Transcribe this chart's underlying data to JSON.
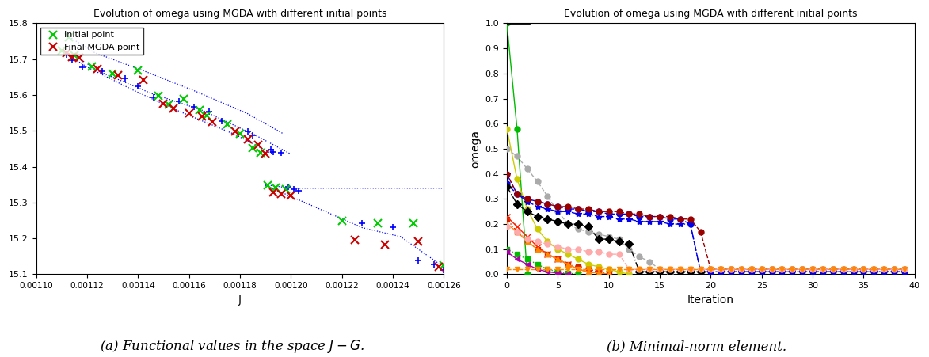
{
  "title_left": "Evolution of omega using MGDA with different initial points",
  "title_right": "Evolution of omega using MGDA with different initial points",
  "caption_left": "(a) Functional values in the space $J - G$.",
  "caption_right": "(b) Minimal-norm element.",
  "left": {
    "xlabel": "J",
    "xlim": [
      0.0011,
      0.00126
    ],
    "ylim": [
      15.1,
      15.8
    ],
    "yticks": [
      15.1,
      15.2,
      15.3,
      15.4,
      15.5,
      15.6,
      15.7,
      15.8
    ],
    "xtick_labels": [
      "0.0011",
      "0.00112",
      "0.00114",
      "0.00116",
      "0.00118",
      "0.0012",
      "0.00122",
      "0.00124",
      "0.00126"
    ]
  },
  "right": {
    "xlabel": "Iteration",
    "ylabel": "omega",
    "xlim": [
      0,
      40
    ],
    "ylim": [
      0,
      1.0
    ],
    "yticks": [
      0.0,
      0.1,
      0.2,
      0.3,
      0.4,
      0.5,
      0.6,
      0.7,
      0.8,
      0.9,
      1.0
    ],
    "xticks": [
      0,
      5,
      10,
      15,
      20,
      25,
      30,
      35,
      40
    ]
  },
  "series": [
    {
      "color": "#00bb00",
      "marker": "o",
      "linestyle": "-",
      "markersize": 5,
      "lw": 1.0,
      "iters": [
        0,
        1,
        2
      ],
      "vals": [
        1.0,
        0.58,
        0.0
      ]
    },
    {
      "color": "#cccc00",
      "marker": "o",
      "linestyle": "-",
      "markersize": 5,
      "lw": 1.0,
      "iters": [
        0,
        1,
        2,
        3,
        4,
        5,
        6,
        7,
        8,
        9,
        10,
        11,
        12
      ],
      "vals": [
        0.58,
        0.38,
        0.26,
        0.18,
        0.13,
        0.1,
        0.08,
        0.06,
        0.04,
        0.03,
        0.02,
        0.01,
        0.0
      ]
    },
    {
      "color": "#aaaaaa",
      "marker": "o",
      "linestyle": "--",
      "markersize": 5,
      "lw": 1.0,
      "iters": [
        0,
        1,
        2,
        3,
        4,
        5,
        6,
        7,
        8,
        9,
        10,
        11,
        12,
        13,
        14,
        15,
        16
      ],
      "vals": [
        0.5,
        0.47,
        0.42,
        0.37,
        0.31,
        0.25,
        0.2,
        0.18,
        0.17,
        0.16,
        0.15,
        0.14,
        0.1,
        0.07,
        0.05,
        0.02,
        0.0
      ]
    },
    {
      "color": "#0000ee",
      "marker": "o",
      "linestyle": "--",
      "markersize": 5,
      "lw": 1.0,
      "iters": [
        0,
        1,
        2,
        3,
        4,
        5,
        6,
        7,
        8,
        9,
        10,
        11,
        12,
        13,
        14,
        15,
        16,
        17,
        18,
        19,
        20,
        21,
        22,
        23,
        24,
        25,
        26,
        27,
        28,
        29,
        30,
        31,
        32,
        33,
        34,
        35,
        36,
        37,
        38,
        39
      ],
      "vals": [
        0.36,
        0.32,
        0.3,
        0.29,
        0.28,
        0.27,
        0.26,
        0.26,
        0.25,
        0.25,
        0.24,
        0.24,
        0.24,
        0.23,
        0.23,
        0.23,
        0.22,
        0.22,
        0.2,
        0.01,
        0.01,
        0.01,
        0.01,
        0.01,
        0.01,
        0.01,
        0.01,
        0.01,
        0.01,
        0.01,
        0.01,
        0.01,
        0.01,
        0.01,
        0.01,
        0.01,
        0.01,
        0.01,
        0.01,
        0.01
      ]
    },
    {
      "color": "#0000ee",
      "marker": "*",
      "linestyle": "-.",
      "markersize": 6,
      "lw": 1.0,
      "iters": [
        0,
        1,
        2,
        3,
        4,
        5,
        6,
        7,
        8,
        9,
        10,
        11,
        12,
        13,
        14,
        15,
        16,
        17,
        18,
        19,
        20,
        21,
        22,
        23,
        24,
        25,
        26,
        27,
        28,
        29,
        30,
        31,
        32,
        33,
        34,
        35,
        36,
        37,
        38,
        39
      ],
      "vals": [
        0.4,
        0.32,
        0.29,
        0.27,
        0.26,
        0.25,
        0.25,
        0.24,
        0.24,
        0.23,
        0.23,
        0.22,
        0.22,
        0.21,
        0.21,
        0.21,
        0.2,
        0.2,
        0.2,
        0.01,
        0.01,
        0.01,
        0.01,
        0.01,
        0.01,
        0.01,
        0.01,
        0.01,
        0.01,
        0.01,
        0.01,
        0.01,
        0.01,
        0.01,
        0.01,
        0.01,
        0.01,
        0.01,
        0.01,
        0.01
      ]
    },
    {
      "color": "#990000",
      "marker": "o",
      "linestyle": "--",
      "markersize": 5,
      "lw": 1.0,
      "iters": [
        0,
        1,
        2,
        3,
        4,
        5,
        6,
        7,
        8,
        9,
        10,
        11,
        12,
        13,
        14,
        15,
        16,
        17,
        18,
        19,
        20,
        21,
        22,
        23,
        24,
        25,
        26,
        27,
        28,
        29,
        30,
        31,
        32,
        33,
        34,
        35,
        36,
        37,
        38,
        39
      ],
      "vals": [
        0.4,
        0.32,
        0.3,
        0.29,
        0.28,
        0.27,
        0.27,
        0.26,
        0.26,
        0.25,
        0.25,
        0.25,
        0.24,
        0.24,
        0.23,
        0.23,
        0.23,
        0.22,
        0.22,
        0.17,
        0.02,
        0.02,
        0.02,
        0.02,
        0.02,
        0.02,
        0.02,
        0.02,
        0.02,
        0.02,
        0.02,
        0.02,
        0.02,
        0.02,
        0.02,
        0.02,
        0.02,
        0.02,
        0.02,
        0.02
      ]
    },
    {
      "color": "#000000",
      "marker": "D",
      "linestyle": "-.",
      "markersize": 5,
      "lw": 1.0,
      "iters": [
        0,
        1,
        2,
        3,
        4,
        5,
        6,
        7,
        8,
        9,
        10,
        11,
        12,
        13,
        14,
        15,
        16,
        17,
        18,
        19
      ],
      "vals": [
        0.35,
        0.28,
        0.25,
        0.23,
        0.22,
        0.21,
        0.2,
        0.2,
        0.19,
        0.14,
        0.14,
        0.13,
        0.12,
        0.01,
        0.01,
        0.01,
        0.01,
        0.01,
        0.01,
        0.01
      ]
    },
    {
      "color": "#cc2200",
      "marker": "s",
      "linestyle": ":",
      "markersize": 4,
      "lw": 1.0,
      "iters": [
        0,
        1,
        2,
        3,
        4,
        5,
        6,
        7,
        8,
        9,
        10
      ],
      "vals": [
        0.22,
        0.17,
        0.13,
        0.1,
        0.08,
        0.06,
        0.04,
        0.03,
        0.02,
        0.01,
        0.0
      ]
    },
    {
      "color": "#ff2200",
      "marker": "x",
      "linestyle": "-",
      "markersize": 6,
      "lw": 1.0,
      "iters": [
        0,
        1,
        2,
        3,
        4,
        5,
        6,
        7,
        8,
        9,
        10
      ],
      "vals": [
        0.23,
        0.19,
        0.15,
        0.11,
        0.08,
        0.06,
        0.04,
        0.02,
        0.01,
        0.005,
        0.0
      ]
    },
    {
      "color": "#ff8800",
      "marker": "^",
      "linestyle": "-",
      "markersize": 5,
      "lw": 1.0,
      "iters": [
        0,
        1,
        2,
        3,
        4,
        5,
        6,
        7,
        8,
        9,
        10
      ],
      "vals": [
        0.2,
        0.17,
        0.13,
        0.1,
        0.08,
        0.06,
        0.04,
        0.02,
        0.01,
        0.005,
        0.0
      ]
    },
    {
      "color": "#ffaaaa",
      "marker": "o",
      "linestyle": "--",
      "markersize": 5,
      "lw": 1.0,
      "iters": [
        0,
        1,
        2,
        3,
        4,
        5,
        6,
        7,
        8,
        9,
        10,
        11,
        12,
        13,
        14,
        15,
        16,
        17,
        18,
        19,
        20,
        21,
        22,
        23,
        24,
        25,
        26,
        27,
        28,
        29,
        30,
        31,
        32,
        33,
        34,
        35,
        36,
        37,
        38,
        39
      ],
      "vals": [
        0.19,
        0.17,
        0.14,
        0.13,
        0.12,
        0.11,
        0.1,
        0.1,
        0.09,
        0.09,
        0.08,
        0.08,
        0.02,
        0.02,
        0.02,
        0.02,
        0.02,
        0.02,
        0.02,
        0.02,
        0.02,
        0.02,
        0.02,
        0.02,
        0.02,
        0.02,
        0.02,
        0.02,
        0.02,
        0.02,
        0.02,
        0.02,
        0.02,
        0.02,
        0.02,
        0.02,
        0.02,
        0.02,
        0.02,
        0.02
      ]
    },
    {
      "color": "#00bb00",
      "marker": "s",
      "linestyle": ":",
      "markersize": 4,
      "lw": 1.0,
      "iters": [
        0,
        1,
        2,
        3,
        4,
        5,
        6,
        7
      ],
      "vals": [
        0.1,
        0.08,
        0.06,
        0.04,
        0.02,
        0.01,
        0.005,
        0.0
      ]
    },
    {
      "color": "#aa00aa",
      "marker": "<",
      "linestyle": "-",
      "markersize": 5,
      "lw": 1.0,
      "iters": [
        0,
        1,
        2,
        3,
        4,
        5,
        6
      ],
      "vals": [
        0.09,
        0.06,
        0.04,
        0.02,
        0.01,
        0.005,
        0.0
      ]
    },
    {
      "color": "#ff8800",
      "marker": "v",
      "linestyle": "--",
      "markersize": 5,
      "lw": 1.0,
      "iters": [
        0,
        1,
        2,
        3,
        4,
        5,
        6,
        7,
        8,
        9,
        10,
        11,
        12,
        13,
        14,
        15,
        16,
        17,
        18,
        19,
        20,
        21,
        22,
        23,
        24,
        25,
        26,
        27,
        28,
        29,
        30,
        31,
        32,
        33,
        34,
        35,
        36,
        37,
        38,
        39
      ],
      "vals": [
        0.02,
        0.02,
        0.02,
        0.02,
        0.02,
        0.02,
        0.02,
        0.02,
        0.02,
        0.02,
        0.02,
        0.02,
        0.02,
        0.02,
        0.02,
        0.02,
        0.02,
        0.02,
        0.02,
        0.02,
        0.02,
        0.02,
        0.02,
        0.02,
        0.02,
        0.02,
        0.02,
        0.02,
        0.02,
        0.02,
        0.02,
        0.02,
        0.02,
        0.02,
        0.02,
        0.02,
        0.02,
        0.02,
        0.02,
        0.02
      ]
    }
  ],
  "left_trajectories": [
    {
      "x": [
        0.00111,
        0.00112,
        0.001138,
        0.001156,
        0.001178,
        0.001193
      ],
      "y": [
        15.724,
        15.678,
        15.614,
        15.555,
        15.49,
        15.435
      ]
    },
    {
      "x": [
        0.001113,
        0.001123,
        0.001142,
        0.001162,
        0.001183,
        0.001197
      ],
      "y": [
        15.762,
        15.718,
        15.668,
        15.612,
        15.548,
        15.492
      ]
    },
    {
      "x": [
        0.001115,
        0.001125,
        0.001145,
        0.001165,
        0.001186,
        0.0012
      ],
      "y": [
        15.71,
        15.665,
        15.605,
        15.558,
        15.488,
        15.435
      ]
    },
    {
      "x": [
        0.00119,
        0.0012,
        0.00124,
        0.00126
      ],
      "y": [
        15.35,
        15.34,
        15.34,
        15.34
      ]
    },
    {
      "x": [
        0.00119,
        0.001228,
        0.001243,
        0.001258
      ],
      "y": [
        15.348,
        15.23,
        15.205,
        15.13
      ]
    }
  ],
  "init_pts": [
    [
      0.00111,
      15.724
    ],
    [
      0.001113,
      15.762
    ],
    [
      0.001115,
      15.71
    ],
    [
      0.001122,
      15.68
    ],
    [
      0.00113,
      15.66
    ],
    [
      0.00114,
      15.668
    ],
    [
      0.001148,
      15.598
    ],
    [
      0.001152,
      15.573
    ],
    [
      0.001158,
      15.588
    ],
    [
      0.001164,
      15.558
    ],
    [
      0.001167,
      15.543
    ],
    [
      0.001175,
      15.518
    ],
    [
      0.00118,
      15.492
    ],
    [
      0.001185,
      15.452
    ],
    [
      0.001188,
      15.438
    ],
    [
      0.001191,
      15.348
    ],
    [
      0.001194,
      15.342
    ],
    [
      0.001198,
      15.338
    ],
    [
      0.00122,
      15.248
    ],
    [
      0.001234,
      15.243
    ],
    [
      0.001248,
      15.243
    ],
    [
      0.00126,
      15.125
    ]
  ],
  "final_pts": [
    [
      0.001112,
      15.718
    ],
    [
      0.001114,
      15.707
    ],
    [
      0.001117,
      15.703
    ],
    [
      0.001124,
      15.672
    ],
    [
      0.001132,
      15.656
    ],
    [
      0.001142,
      15.643
    ],
    [
      0.00115,
      15.576
    ],
    [
      0.001154,
      15.563
    ],
    [
      0.00116,
      15.55
    ],
    [
      0.001165,
      15.54
    ],
    [
      0.001169,
      15.524
    ],
    [
      0.001178,
      15.498
    ],
    [
      0.001183,
      15.476
    ],
    [
      0.001187,
      15.46
    ],
    [
      0.00119,
      15.437
    ],
    [
      0.001193,
      15.328
    ],
    [
      0.001196,
      15.323
    ],
    [
      0.0012,
      15.32
    ],
    [
      0.001225,
      15.195
    ],
    [
      0.001237,
      15.182
    ],
    [
      0.00125,
      15.192
    ],
    [
      0.001258,
      15.122
    ]
  ],
  "blue_plus_pts": [
    [
      0.001112,
      15.712
    ],
    [
      0.001114,
      15.698
    ],
    [
      0.001118,
      15.678
    ],
    [
      0.001126,
      15.666
    ],
    [
      0.001135,
      15.647
    ],
    [
      0.00114,
      15.625
    ],
    [
      0.001146,
      15.593
    ],
    [
      0.001156,
      15.583
    ],
    [
      0.001162,
      15.568
    ],
    [
      0.001168,
      15.553
    ],
    [
      0.001173,
      15.528
    ],
    [
      0.001183,
      15.498
    ],
    [
      0.001185,
      15.488
    ],
    [
      0.001192,
      15.447
    ],
    [
      0.001193,
      15.442
    ],
    [
      0.001196,
      15.438
    ],
    [
      0.001199,
      15.343
    ],
    [
      0.001201,
      15.338
    ],
    [
      0.001203,
      15.333
    ],
    [
      0.001228,
      15.243
    ],
    [
      0.00124,
      15.232
    ],
    [
      0.00125,
      15.138
    ],
    [
      0.001256,
      15.128
    ],
    [
      0.00126,
      15.113
    ]
  ]
}
